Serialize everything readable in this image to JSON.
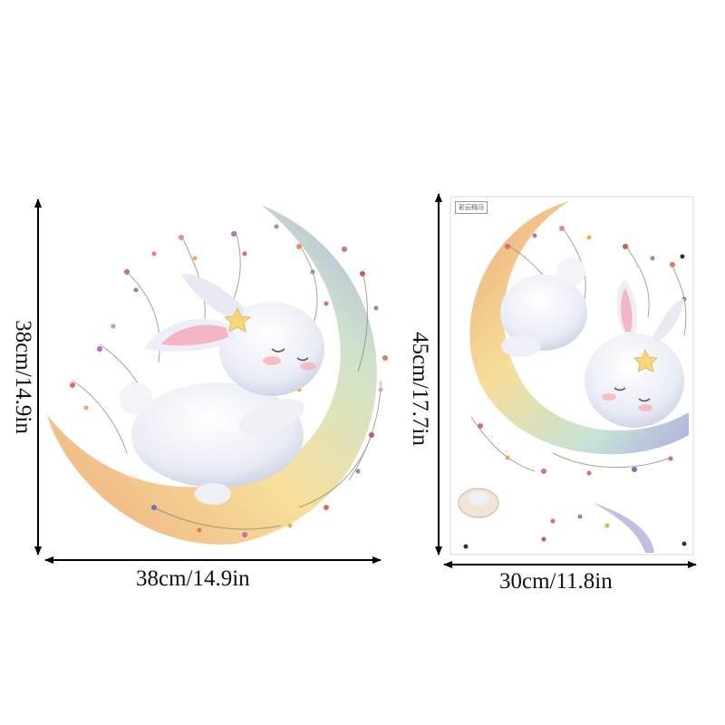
{
  "left_decal": {
    "width_label": "38cm/14.9in",
    "height_label": "38cm/14.9in"
  },
  "right_sheet": {
    "width_label": "30cm/11.8in",
    "height_label": "45cm/17.7in",
    "sheet_tag": "彩云翔马"
  },
  "colors": {
    "arrow": "#000000",
    "moon_warm": "#f2c27a",
    "moon_cool": "#b9b4dc",
    "bunny": "#eef0f6",
    "ear_pink": "#f4b6c2"
  }
}
